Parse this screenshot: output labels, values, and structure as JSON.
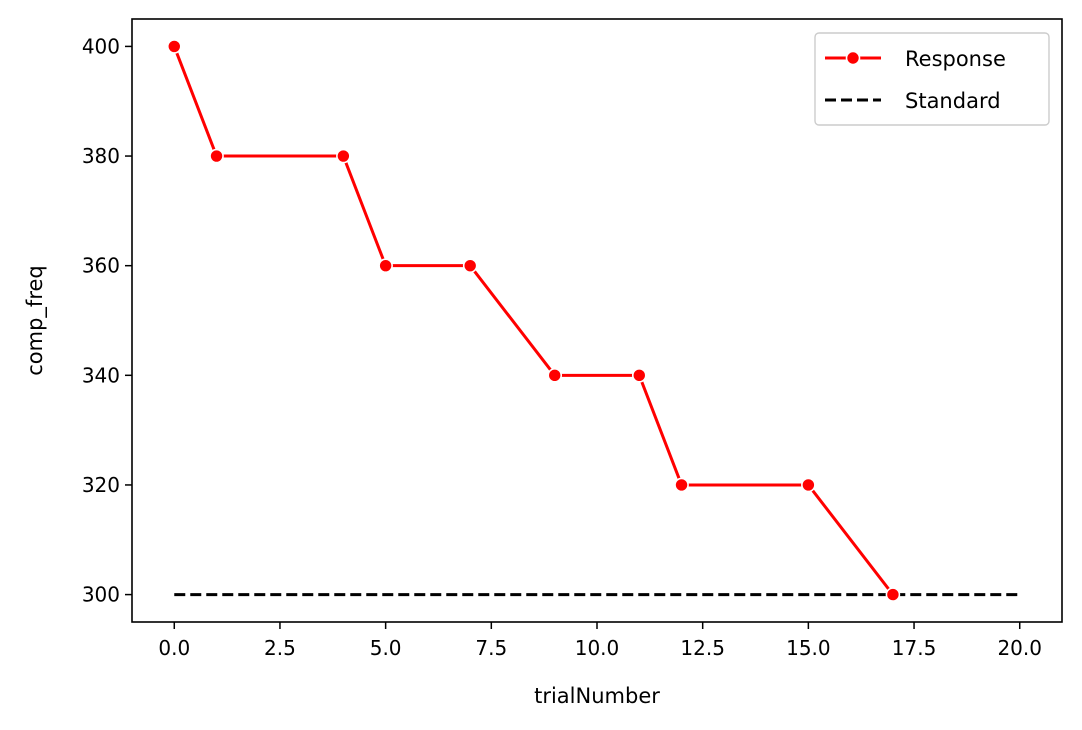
{
  "chart_data": {
    "type": "line",
    "title": "",
    "xlabel": "trialNumber",
    "ylabel": "comp_freq",
    "xlim": [
      -1,
      21
    ],
    "ylim": [
      295,
      405
    ],
    "x_ticks": [
      0.0,
      2.5,
      5.0,
      7.5,
      10.0,
      12.5,
      15.0,
      17.5,
      20.0
    ],
    "x_tick_labels": [
      "0.0",
      "2.5",
      "5.0",
      "7.5",
      "10.0",
      "12.5",
      "15.0",
      "17.5",
      "20.0"
    ],
    "y_ticks": [
      300,
      320,
      340,
      360,
      380,
      400
    ],
    "y_tick_labels": [
      "300",
      "320",
      "340",
      "360",
      "380",
      "400"
    ],
    "grid": false,
    "legend_position": "top-right",
    "series": [
      {
        "name": "Response",
        "color": "#ff0000",
        "style": "solid",
        "marker": "circle",
        "x": [
          0,
          1,
          4,
          5,
          7,
          9,
          11,
          12,
          15,
          17
        ],
        "y": [
          400,
          380,
          380,
          360,
          360,
          340,
          340,
          320,
          320,
          300
        ]
      },
      {
        "name": "Standard",
        "color": "#000000",
        "style": "dashed",
        "marker": "none",
        "x": [
          0,
          20
        ],
        "y": [
          300,
          300
        ]
      }
    ]
  }
}
